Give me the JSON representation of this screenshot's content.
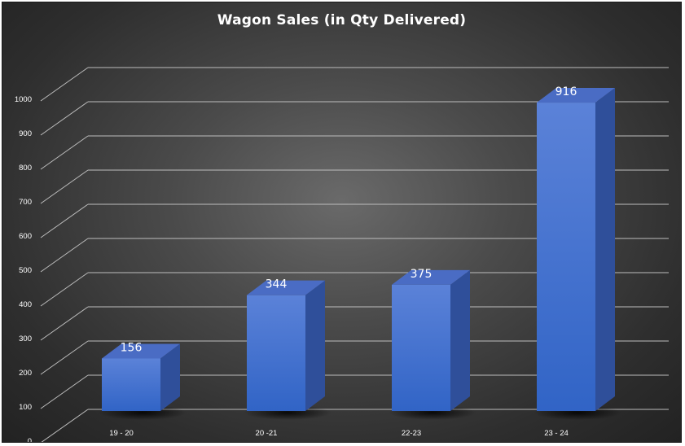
{
  "chart_data": {
    "type": "bar",
    "title": "Wagon Sales (in Qty Delivered)",
    "categories": [
      "19 - 20",
      "20 -21",
      "22-23",
      "23 - 24"
    ],
    "values": [
      156,
      344,
      375,
      916
    ],
    "data_labels": [
      "156",
      "344",
      "375",
      "916"
    ],
    "yticks": [
      "0",
      "100",
      "200",
      "300",
      "400",
      "500",
      "600",
      "700",
      "800",
      "900",
      "1000"
    ],
    "ylim": [
      0,
      1000
    ],
    "grid": true,
    "legend": "none",
    "style": "3d-column",
    "colors": {
      "bar_top": "#5a7fd6",
      "bar_front_top": "#5b82d8",
      "bar_front_bottom": "#3164c6",
      "bar_side": "#2f4f9a",
      "bar_cap": "#4a6cc4",
      "grid": "#bdbdbd",
      "text": "#ffffff"
    }
  }
}
